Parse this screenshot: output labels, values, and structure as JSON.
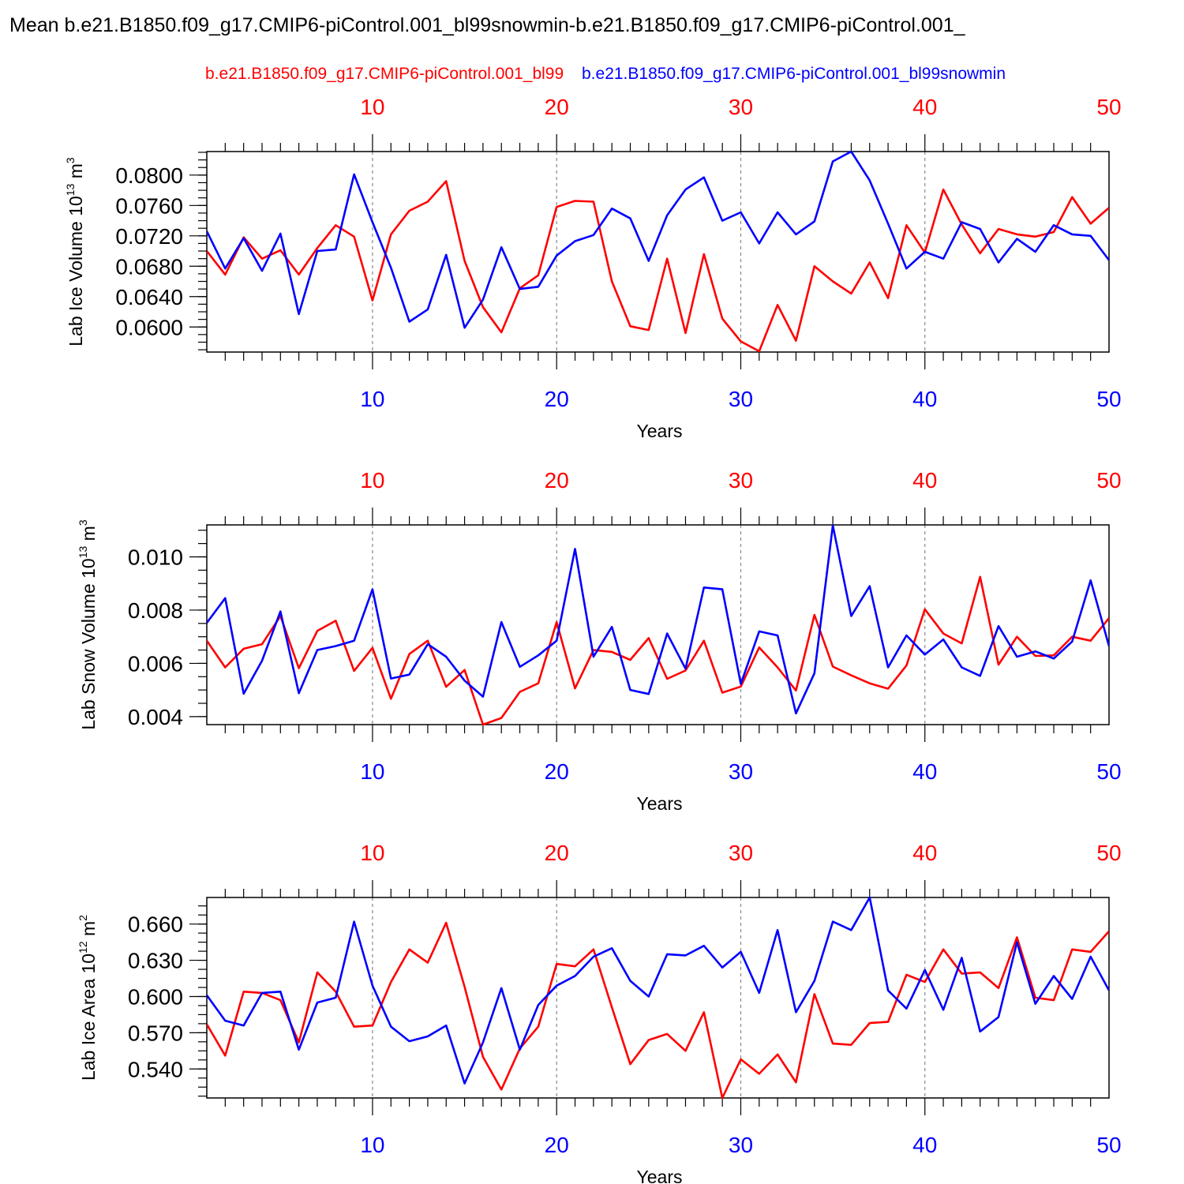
{
  "title": "Mean b.e21.B1850.f09_g17.CMIP6-piControl.001_bl99snowmin-b.e21.B1850.f09_g17.CMIP6-piControl.001_",
  "legend": {
    "red_label": "b.e21.B1850.f09_g17.CMIP6-piControl.001_bl99",
    "blue_label": "b.e21.B1850.f09_g17.CMIP6-piControl.001_bl99snowmin",
    "red_color": "#ff0000",
    "blue_color": "#0000ff"
  },
  "chart_data": [
    {
      "type": "line",
      "ylabel": "Lab Ice Volume 10",
      "ylabel_exp": "13",
      "ylabel_unit": " m",
      "ylabel_unit_exp": "3",
      "xlabel": "Years",
      "xlim": [
        1,
        50
      ],
      "ylim": [
        0.0567,
        0.0831
      ],
      "yticks": [
        0.06,
        0.064,
        0.068,
        0.072,
        0.076,
        0.08
      ],
      "ytick_labels": [
        "0.0600",
        "0.0640",
        "0.0680",
        "0.0720",
        "0.0760",
        "0.0800"
      ],
      "x": [
        1,
        2,
        3,
        4,
        5,
        6,
        7,
        8,
        9,
        10,
        11,
        12,
        13,
        14,
        15,
        16,
        17,
        18,
        19,
        20,
        21,
        22,
        23,
        24,
        25,
        26,
        27,
        28,
        29,
        30,
        31,
        32,
        33,
        34,
        35,
        36,
        37,
        38,
        39,
        40,
        41,
        42,
        43,
        44,
        45,
        46,
        47,
        48,
        49,
        50
      ],
      "series": [
        {
          "color": "#ff0000",
          "values": [
            0.07,
            0.0669,
            0.0718,
            0.069,
            0.0701,
            0.0669,
            0.0704,
            0.0734,
            0.0719,
            0.0635,
            0.0722,
            0.0753,
            0.0765,
            0.0792,
            0.0687,
            0.0626,
            0.0593,
            0.0651,
            0.0668,
            0.0758,
            0.0766,
            0.0765,
            0.066,
            0.0601,
            0.0596,
            0.069,
            0.0592,
            0.0696,
            0.0611,
            0.0581,
            0.0568,
            0.0629,
            0.0582,
            0.068,
            0.066,
            0.0644,
            0.0685,
            0.0638,
            0.0734,
            0.0698,
            0.0781,
            0.0735,
            0.0697,
            0.0729,
            0.0722,
            0.0719,
            0.0725,
            0.0771,
            0.0736,
            0.0757
          ]
        },
        {
          "color": "#0000ff",
          "values": [
            0.0726,
            0.0677,
            0.0717,
            0.0674,
            0.0723,
            0.0617,
            0.07,
            0.0702,
            0.0801,
            0.0738,
            0.0678,
            0.0607,
            0.0623,
            0.0695,
            0.0599,
            0.0636,
            0.0705,
            0.065,
            0.0653,
            0.0694,
            0.0713,
            0.0721,
            0.0756,
            0.0743,
            0.0687,
            0.0747,
            0.0781,
            0.0797,
            0.074,
            0.0751,
            0.071,
            0.0751,
            0.0722,
            0.0739,
            0.0818,
            0.0831,
            0.0793,
            0.0736,
            0.0677,
            0.0699,
            0.069,
            0.0738,
            0.0729,
            0.0685,
            0.0716,
            0.0699,
            0.0734,
            0.0722,
            0.072,
            0.0688
          ]
        }
      ]
    },
    {
      "type": "line",
      "ylabel": "Lab Snow Volume 10",
      "ylabel_exp": "13",
      "ylabel_unit": " m",
      "ylabel_unit_exp": "3",
      "xlabel": "Years",
      "xlim": [
        1,
        50
      ],
      "ylim": [
        0.0037,
        0.0112
      ],
      "yticks": [
        0.004,
        0.006,
        0.008,
        0.01
      ],
      "ytick_labels": [
        "0.004",
        "0.006",
        "0.008",
        "0.010"
      ],
      "x": [
        1,
        2,
        3,
        4,
        5,
        6,
        7,
        8,
        9,
        10,
        11,
        12,
        13,
        14,
        15,
        16,
        17,
        18,
        19,
        20,
        21,
        22,
        23,
        24,
        25,
        26,
        27,
        28,
        29,
        30,
        31,
        32,
        33,
        34,
        35,
        36,
        37,
        38,
        39,
        40,
        41,
        42,
        43,
        44,
        45,
        46,
        47,
        48,
        49,
        50
      ],
      "series": [
        {
          "color": "#ff0000",
          "values": [
            0.00685,
            0.00585,
            0.00655,
            0.00672,
            0.00778,
            0.00582,
            0.00722,
            0.0076,
            0.00572,
            0.00658,
            0.00467,
            0.00635,
            0.00685,
            0.00512,
            0.00575,
            0.0037,
            0.00395,
            0.00493,
            0.00525,
            0.00755,
            0.00506,
            0.0065,
            0.00643,
            0.00613,
            0.00695,
            0.00542,
            0.00573,
            0.00685,
            0.0049,
            0.00513,
            0.0066,
            0.00585,
            0.00498,
            0.00782,
            0.00588,
            0.00555,
            0.00525,
            0.00505,
            0.00592,
            0.00803,
            0.00712,
            0.00675,
            0.00925,
            0.00595,
            0.007,
            0.00628,
            0.0063,
            0.007,
            0.00685,
            0.0077
          ]
        },
        {
          "color": "#0000ff",
          "values": [
            0.00752,
            0.00845,
            0.00486,
            0.0061,
            0.00795,
            0.00488,
            0.0065,
            0.00665,
            0.00685,
            0.00878,
            0.00543,
            0.00558,
            0.00672,
            0.00625,
            0.00535,
            0.00475,
            0.00755,
            0.00587,
            0.0063,
            0.00685,
            0.0103,
            0.00625,
            0.00737,
            0.005,
            0.00485,
            0.00712,
            0.0058,
            0.00885,
            0.00878,
            0.00523,
            0.0072,
            0.00705,
            0.00412,
            0.00563,
            0.01118,
            0.00778,
            0.0089,
            0.00585,
            0.00705,
            0.00633,
            0.0069,
            0.00585,
            0.00553,
            0.0074,
            0.00625,
            0.00645,
            0.00618,
            0.00682,
            0.00912,
            0.00665
          ]
        }
      ]
    },
    {
      "type": "line",
      "ylabel": "Lab Ice Area 10",
      "ylabel_exp": "12",
      "ylabel_unit": " m",
      "ylabel_unit_exp": "2",
      "xlabel": "Years",
      "xlim": [
        1,
        50
      ],
      "ylim": [
        0.516,
        0.682
      ],
      "yticks": [
        0.54,
        0.57,
        0.6,
        0.63,
        0.66
      ],
      "ytick_labels": [
        "0.540",
        "0.570",
        "0.600",
        "0.630",
        "0.660"
      ],
      "x": [
        1,
        2,
        3,
        4,
        5,
        6,
        7,
        8,
        9,
        10,
        11,
        12,
        13,
        14,
        15,
        16,
        17,
        18,
        19,
        20,
        21,
        22,
        23,
        24,
        25,
        26,
        27,
        28,
        29,
        30,
        31,
        32,
        33,
        34,
        35,
        36,
        37,
        38,
        39,
        40,
        41,
        42,
        43,
        44,
        45,
        46,
        47,
        48,
        49,
        50
      ],
      "series": [
        {
          "color": "#ff0000",
          "values": [
            0.577,
            0.551,
            0.604,
            0.603,
            0.597,
            0.562,
            0.62,
            0.604,
            0.575,
            0.576,
            0.612,
            0.639,
            0.628,
            0.661,
            0.608,
            0.55,
            0.523,
            0.557,
            0.575,
            0.627,
            0.625,
            0.639,
            0.591,
            0.544,
            0.564,
            0.569,
            0.555,
            0.587,
            0.516,
            0.548,
            0.536,
            0.552,
            0.529,
            0.602,
            0.561,
            0.56,
            0.578,
            0.579,
            0.618,
            0.612,
            0.639,
            0.619,
            0.62,
            0.607,
            0.649,
            0.599,
            0.597,
            0.639,
            0.637,
            0.654
          ]
        },
        {
          "color": "#0000ff",
          "values": [
            0.601,
            0.58,
            0.576,
            0.603,
            0.604,
            0.556,
            0.595,
            0.599,
            0.662,
            0.609,
            0.575,
            0.563,
            0.567,
            0.576,
            0.528,
            0.562,
            0.607,
            0.556,
            0.593,
            0.609,
            0.617,
            0.633,
            0.64,
            0.613,
            0.6,
            0.635,
            0.634,
            0.642,
            0.624,
            0.637,
            0.603,
            0.655,
            0.587,
            0.613,
            0.662,
            0.655,
            0.682,
            0.605,
            0.59,
            0.622,
            0.589,
            0.632,
            0.571,
            0.583,
            0.645,
            0.594,
            0.617,
            0.598,
            0.633,
            0.605
          ]
        }
      ]
    }
  ]
}
